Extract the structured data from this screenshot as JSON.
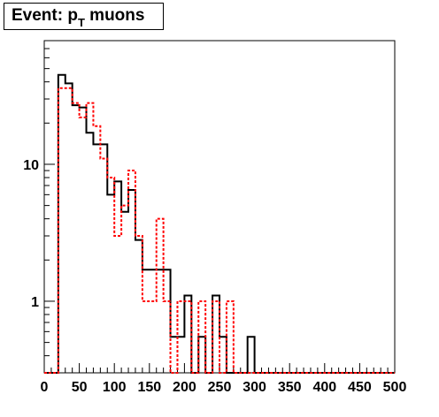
{
  "title": {
    "main": "Event: p",
    "subscript": "T",
    "suffix": " muons"
  },
  "colors": {
    "series_a": "#000000",
    "series_b": "#ff0000",
    "axis": "#000000"
  },
  "chart_data": {
    "type": "histogram",
    "xlim": [
      0,
      500
    ],
    "ylim": [
      0.3,
      80
    ],
    "ylog": true,
    "bin_width": 10,
    "xticks": [
      0,
      50,
      100,
      150,
      200,
      250,
      300,
      350,
      400,
      450,
      500
    ],
    "yticks": [
      1,
      10
    ],
    "series": [
      {
        "style": "solid",
        "color": "#000000",
        "values": [
          0,
          0,
          45,
          39,
          27,
          26,
          17,
          14,
          14,
          6,
          7.5,
          4.5,
          6.5,
          2.8,
          1.7,
          1.7,
          1.7,
          1.7,
          0.55,
          0.55,
          1.1,
          0,
          0.55,
          0,
          1.1,
          0.55,
          0,
          0,
          0,
          0.55,
          0,
          0,
          0,
          0,
          0,
          0,
          0,
          0,
          0,
          0,
          0,
          0,
          0,
          0,
          0,
          0,
          0,
          0,
          0,
          0
        ]
      },
      {
        "style": "dashed",
        "color": "#ff0000",
        "values": [
          0,
          0,
          36,
          36,
          28,
          22,
          28,
          19,
          11,
          8,
          3,
          5,
          9,
          3,
          1,
          1,
          4,
          1,
          0,
          1,
          1,
          0,
          1,
          0,
          1,
          0,
          1,
          0,
          0,
          0,
          0,
          0,
          0,
          0,
          0,
          0,
          0,
          0,
          0,
          0,
          0,
          0,
          0,
          0,
          0,
          0,
          0,
          0,
          0,
          0
        ]
      }
    ]
  }
}
